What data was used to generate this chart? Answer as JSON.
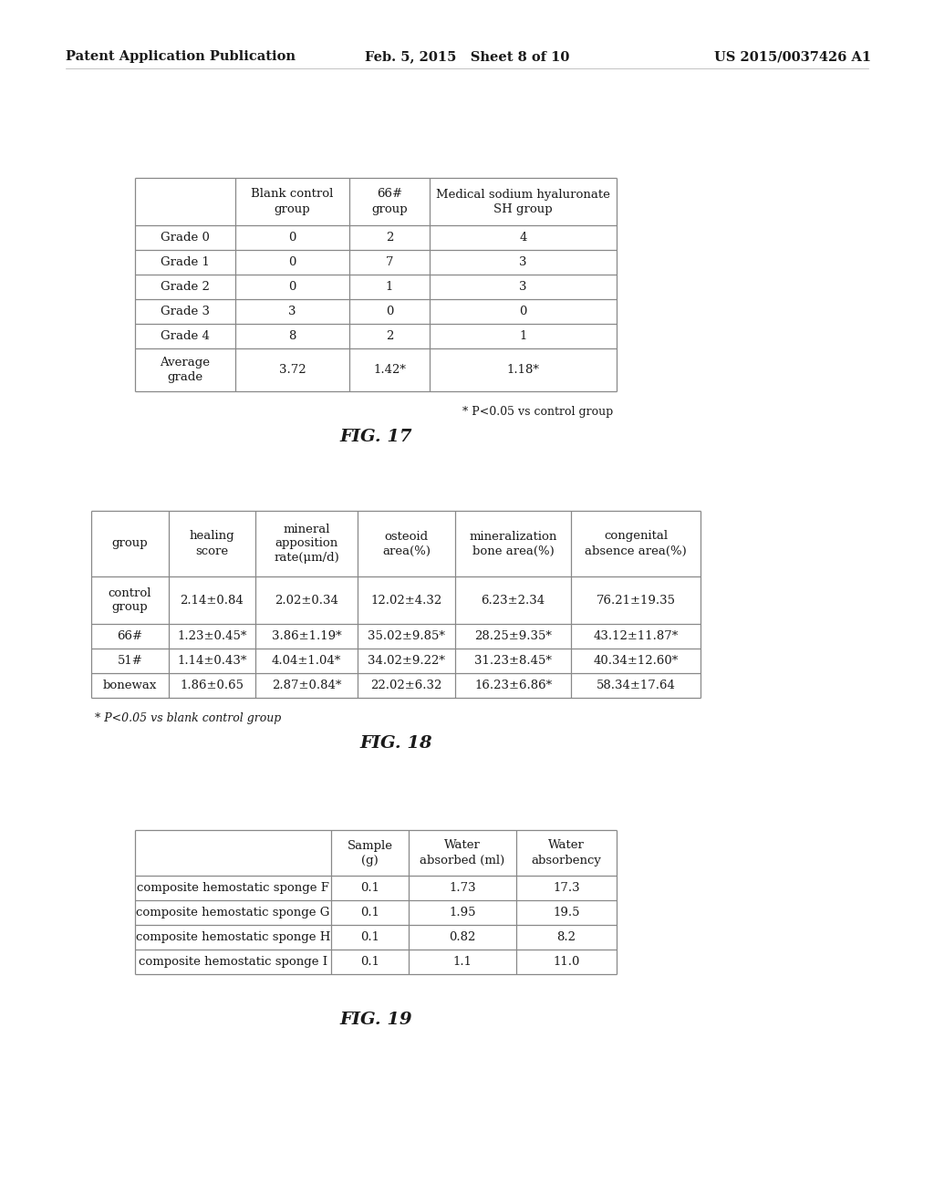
{
  "header_text": {
    "left": "Patent Application Publication",
    "center": "Feb. 5, 2015   Sheet 8 of 10",
    "right": "US 2015/0037426 A1"
  },
  "fig17": {
    "caption": "FIG. 17",
    "footnote": "* P<0.05 vs control group",
    "col_headers": [
      "",
      "Blank control\ngroup",
      "66#\ngroup",
      "Medical sodium hyaluronate\nSH group"
    ],
    "rows": [
      [
        "Grade 0",
        "0",
        "2",
        "4"
      ],
      [
        "Grade 1",
        "0",
        "7",
        "3"
      ],
      [
        "Grade 2",
        "0",
        "1",
        "3"
      ],
      [
        "Grade 3",
        "3",
        "0",
        "0"
      ],
      [
        "Grade 4",
        "8",
        "2",
        "1"
      ],
      [
        "Average\ngrade",
        "3.72",
        "1.42*",
        "1.18*"
      ]
    ]
  },
  "fig18": {
    "caption": "FIG. 18",
    "footnote": "* P<0.05 vs blank control group",
    "col_headers": [
      "group",
      "healing\nscore",
      "mineral\napposition\nrate(μm/d)",
      "osteoid\narea(%)",
      "mineralization\nbone area(%)",
      "congenital\nabsence area(%)"
    ],
    "rows": [
      [
        "control\ngroup",
        "2.14±0.84",
        "2.02±0.34",
        "12.02±4.32",
        "6.23±2.34",
        "76.21±19.35"
      ],
      [
        "66#",
        "1.23±0.45*",
        "3.86±1.19*",
        "35.02±9.85*",
        "28.25±9.35*",
        "43.12±11.87*"
      ],
      [
        "51#",
        "1.14±0.43*",
        "4.04±1.04*",
        "34.02±9.22*",
        "31.23±8.45*",
        "40.34±12.60*"
      ],
      [
        "bonewax",
        "1.86±0.65",
        "2.87±0.84*",
        "22.02±6.32",
        "16.23±6.86*",
        "58.34±17.64"
      ]
    ]
  },
  "fig19": {
    "caption": "FIG. 19",
    "col_headers": [
      "",
      "Sample\n(g)",
      "Water\nabsorbed (ml)",
      "Water\nabsorbency"
    ],
    "rows": [
      [
        "composite hemostatic sponge F",
        "0.1",
        "1.73",
        "17.3"
      ],
      [
        "composite hemostatic sponge G",
        "0.1",
        "1.95",
        "19.5"
      ],
      [
        "composite hemostatic sponge H",
        "0.1",
        "0.82",
        "8.2"
      ],
      [
        "composite hemostatic sponge I",
        "0.1",
        "1.1",
        "11.0"
      ]
    ]
  },
  "bg_color": "#ffffff",
  "text_color": "#1a1a1a",
  "line_color": "#888888"
}
